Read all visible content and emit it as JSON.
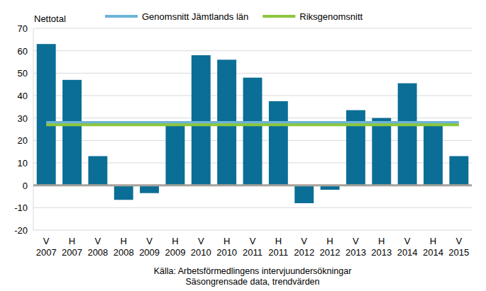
{
  "chart_data": {
    "type": "bar",
    "y_label": "Nettotal",
    "categories": [
      "V 2007",
      "H 2007",
      "V 2008",
      "H 2008",
      "V 2009",
      "H 2009",
      "V 2010",
      "H 2010",
      "V 2011",
      "H 2011",
      "V 2012",
      "H 2012",
      "V 2013",
      "H 2013",
      "V 2014",
      "H 2014",
      "V 2015"
    ],
    "values": [
      63,
      47,
      13,
      -6.5,
      -3.5,
      27,
      58,
      56,
      48,
      37.5,
      -8,
      -2,
      33.5,
      30,
      45.5,
      27,
      13
    ],
    "color": "#0b6e96",
    "series": [
      {
        "name": "Genomsnitt Jämtlands län",
        "type": "line",
        "color": "#6db3d8",
        "values": [
          28,
          28,
          28,
          28,
          28,
          28,
          28,
          28,
          28,
          28,
          28,
          28,
          28,
          28,
          28,
          28,
          28
        ]
      },
      {
        "name": "Riksgenomsnitt",
        "type": "line",
        "color": "#8cc63e",
        "values": [
          27,
          27,
          27,
          27,
          27,
          27,
          27,
          27,
          27,
          27,
          27,
          27,
          27,
          27,
          27,
          27,
          27
        ]
      }
    ],
    "ylim": [
      -20,
      70
    ],
    "yticks": [
      -20,
      -10,
      0,
      10,
      20,
      30,
      40,
      50,
      60,
      70
    ],
    "grid": true,
    "legend": "top",
    "annotations": [
      "Källa: Arbetsförmedlingens intervjuundersökningar",
      "Säsongrensade data, trendvärden"
    ]
  }
}
